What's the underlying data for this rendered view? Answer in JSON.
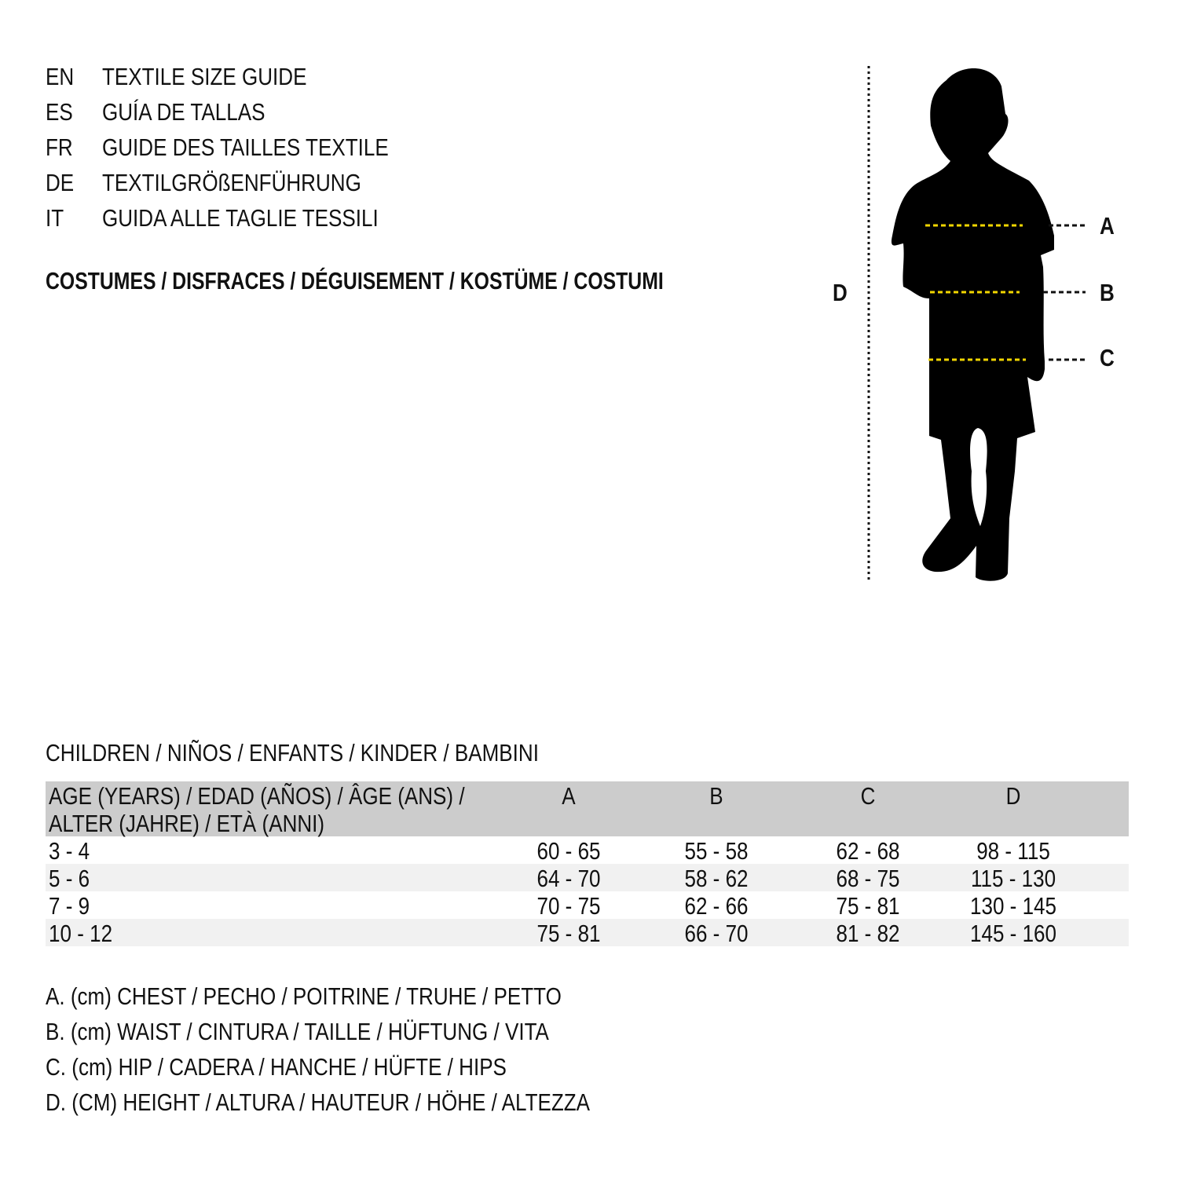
{
  "guide_titles": [
    {
      "lang": "EN",
      "title": "TEXTILE SIZE GUIDE"
    },
    {
      "lang": "ES",
      "title": "GUÍA DE TALLAS"
    },
    {
      "lang": "FR",
      "title": "GUIDE DES TAILLES TEXTILE"
    },
    {
      "lang": "DE",
      "title": "TEXTILGRÖßENFÜHRUNG"
    },
    {
      "lang": "IT",
      "title": "GUIDA ALLE TAGLIE TESSILI"
    }
  ],
  "category": "COSTUMES / DISFRACES / DÉGUISEMENT / KOSTÜME / COSTUMI",
  "figure": {
    "labels": {
      "a": "A",
      "b": "B",
      "c": "C",
      "d": "D"
    },
    "measure_line_color": "#f2d600"
  },
  "table": {
    "caption": "CHILDREN / NIÑOS / ENFANTS / KINDER / BAMBINI",
    "header": {
      "age_line1": "AGE (YEARS) / EDAD (AÑOS) / ÂGE (ANS) /",
      "age_line2": "ALTER (JAHRE) / ETÀ (ANNI)",
      "a": "A",
      "b": "B",
      "c": "C",
      "d": "D"
    },
    "rows": [
      {
        "age": "3 - 4",
        "a": "60 - 65",
        "b": "55 - 58",
        "c": "62 - 68",
        "d": "98 - 115"
      },
      {
        "age": "5 - 6",
        "a": "64 - 70",
        "b": "58 - 62",
        "c": "68 - 75",
        "d": "115 - 130"
      },
      {
        "age": "7 - 9",
        "a": "70 - 75",
        "b": "62 - 66",
        "c": "75 - 81",
        "d": "130 - 145"
      },
      {
        "age": "10 - 12",
        "a": "75 - 81",
        "b": "66 - 70",
        "c": "81 - 82",
        "d": "145 - 160"
      }
    ]
  },
  "legend": [
    "A. (cm) CHEST / PECHO / POITRINE / TRUHE / PETTO",
    "B. (cm) WAIST / CINTURA / TAILLE / HÜFTUNG / VITA",
    "C. (cm) HIP / CADERA / HANCHE / HÜFTE / HIPS",
    "D. (CM) HEIGHT / ALTURA / HAUTEUR / HÖHE / ALTEZZA"
  ]
}
